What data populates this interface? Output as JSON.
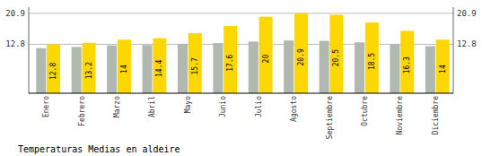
{
  "chart_data": {
    "type": "bar",
    "title": "Temperaturas Medias en aldeire",
    "categories": [
      "Enero",
      "Febrero",
      "Marzo",
      "Abril",
      "Mayo",
      "Junio",
      "Julio",
      "Agosto",
      "Septiembre",
      "Octubre",
      "Noviembre",
      "Diciembre"
    ],
    "series": [
      {
        "color": "#B0B8B0",
        "values": [
          11.8,
          12.1,
          12.5,
          12.6,
          12.9,
          13.1,
          13.5,
          13.8,
          13.7,
          13.3,
          12.8,
          12.3
        ]
      },
      {
        "color": "#FFD700",
        "values": [
          12.8,
          13.2,
          14.0,
          14.4,
          15.7,
          17.6,
          20.0,
          20.9,
          20.5,
          18.5,
          16.3,
          14.0
        ],
        "data_labels": true
      }
    ],
    "ylim": [
      0,
      22.5
    ],
    "yticks": [
      12.8,
      20.9
    ],
    "y2lim": [
      0,
      22.5
    ],
    "y2ticks": [
      12.8,
      20.9
    ],
    "grid": true
  }
}
